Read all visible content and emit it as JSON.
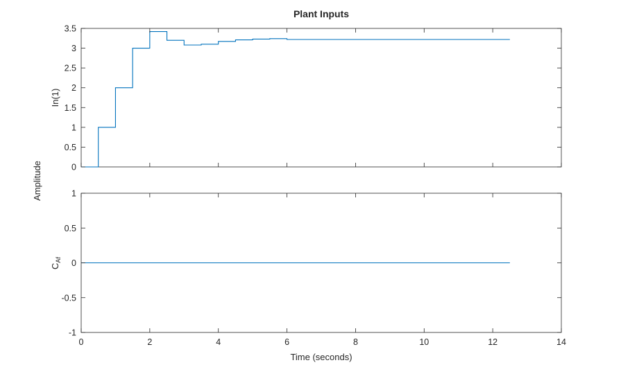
{
  "chart_data": {
    "type": "line",
    "title": "Plant Inputs",
    "xlabel": "Time (seconds)",
    "shared_ylabel": "Amplitude",
    "xlim": [
      0,
      14
    ],
    "xticks": [
      "0",
      "2",
      "4",
      "6",
      "8",
      "10",
      "12",
      "14"
    ],
    "color": "#0072BD",
    "subplots": [
      {
        "ylabel": "In(1)",
        "ylim": [
          0,
          3.5
        ],
        "yticks": [
          "0",
          "0.5",
          "1",
          "1.5",
          "2",
          "2.5",
          "3",
          "3.5"
        ],
        "step": true,
        "x": [
          0,
          0.5,
          1,
          1.5,
          2,
          2.5,
          3,
          3.5,
          4,
          4.5,
          5,
          5.5,
          6,
          12.5
        ],
        "y": [
          0,
          1,
          2,
          3,
          3.42,
          3.2,
          3.08,
          3.1,
          3.17,
          3.21,
          3.23,
          3.24,
          3.22,
          3.22
        ]
      },
      {
        "ylabel": "C",
        "ylabel_sub": "Af",
        "ylim": [
          -1,
          1
        ],
        "yticks": [
          "-1",
          "-0.5",
          "0",
          "0.5",
          "1"
        ],
        "step": true,
        "x": [
          0,
          12.5
        ],
        "y": [
          0,
          0
        ]
      }
    ]
  }
}
